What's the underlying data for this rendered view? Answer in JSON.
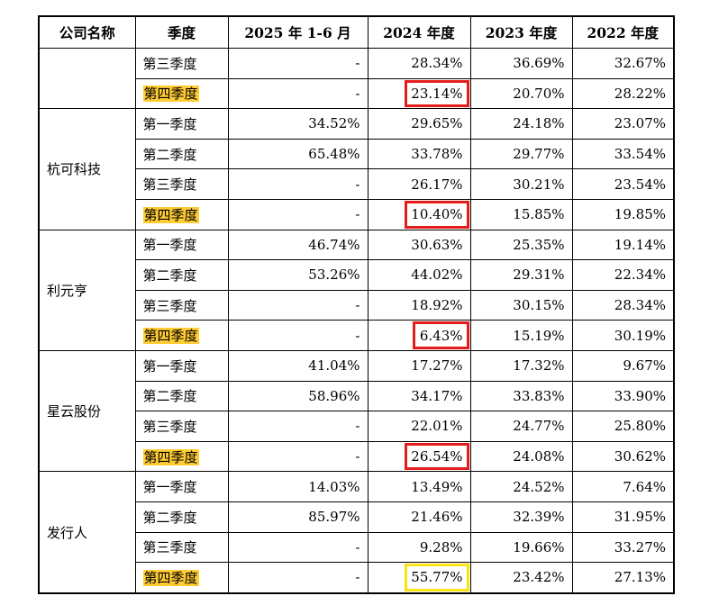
{
  "headers": [
    "公司名称",
    "季度",
    "2025 年 1-6 月",
    "2024 年度",
    "2023 年度",
    "2022 年度"
  ],
  "groups": [
    {
      "company": "",
      "rows": [
        {
          "quarter": "第三季度",
          "v2025": "-",
          "v2024": "28.34%",
          "v2023": "36.69%",
          "v2022": "32.67%",
          "highlight": false,
          "box": null
        },
        {
          "quarter": "第四季度",
          "v2025": "-",
          "v2024": "23.14%",
          "v2023": "20.70%",
          "v2022": "28.22%",
          "highlight": true,
          "box": "red"
        }
      ]
    },
    {
      "company": "杭可科技",
      "rows": [
        {
          "quarter": "第一季度",
          "v2025": "34.52%",
          "v2024": "29.65%",
          "v2023": "24.18%",
          "v2022": "23.07%",
          "highlight": false,
          "box": null
        },
        {
          "quarter": "第二季度",
          "v2025": "65.48%",
          "v2024": "33.78%",
          "v2023": "29.77%",
          "v2022": "33.54%",
          "highlight": false,
          "box": null
        },
        {
          "quarter": "第三季度",
          "v2025": "-",
          "v2024": "26.17%",
          "v2023": "30.21%",
          "v2022": "23.54%",
          "highlight": false,
          "box": null
        },
        {
          "quarter": "第四季度",
          "v2025": "-",
          "v2024": "10.40%",
          "v2023": "15.85%",
          "v2022": "19.85%",
          "highlight": true,
          "box": "red"
        }
      ]
    },
    {
      "company": "利元亨",
      "rows": [
        {
          "quarter": "第一季度",
          "v2025": "46.74%",
          "v2024": "30.63%",
          "v2023": "25.35%",
          "v2022": "19.14%",
          "highlight": false,
          "box": null
        },
        {
          "quarter": "第二季度",
          "v2025": "53.26%",
          "v2024": "44.02%",
          "v2023": "29.31%",
          "v2022": "22.34%",
          "highlight": false,
          "box": null
        },
        {
          "quarter": "第三季度",
          "v2025": "-",
          "v2024": "18.92%",
          "v2023": "30.15%",
          "v2022": "28.34%",
          "highlight": false,
          "box": null
        },
        {
          "quarter": "第四季度",
          "v2025": "-",
          "v2024": "6.43%",
          "v2023": "15.19%",
          "v2022": "30.19%",
          "highlight": true,
          "box": "red"
        }
      ]
    },
    {
      "company": "星云股份",
      "rows": [
        {
          "quarter": "第一季度",
          "v2025": "41.04%",
          "v2024": "17.27%",
          "v2023": "17.32%",
          "v2022": "9.67%",
          "highlight": false,
          "box": null
        },
        {
          "quarter": "第二季度",
          "v2025": "58.96%",
          "v2024": "34.17%",
          "v2023": "33.83%",
          "v2022": "33.90%",
          "highlight": false,
          "box": null
        },
        {
          "quarter": "第三季度",
          "v2025": "-",
          "v2024": "22.01%",
          "v2023": "24.77%",
          "v2022": "25.80%",
          "highlight": false,
          "box": null
        },
        {
          "quarter": "第四季度",
          "v2025": "-",
          "v2024": "26.54%",
          "v2023": "24.08%",
          "v2022": "30.62%",
          "highlight": true,
          "box": "red"
        }
      ]
    },
    {
      "company": "发行人",
      "rows": [
        {
          "quarter": "第一季度",
          "v2025": "14.03%",
          "v2024": "13.49%",
          "v2023": "24.52%",
          "v2022": "7.64%",
          "highlight": false,
          "box": null
        },
        {
          "quarter": "第二季度",
          "v2025": "85.97%",
          "v2024": "21.46%",
          "v2023": "32.39%",
          "v2022": "31.95%",
          "highlight": false,
          "box": null
        },
        {
          "quarter": "第三季度",
          "v2025": "-",
          "v2024": "9.28%",
          "v2023": "19.66%",
          "v2022": "33.27%",
          "highlight": false,
          "box": null
        },
        {
          "quarter": "第四季度",
          "v2025": "-",
          "v2024": "55.77%",
          "v2023": "23.42%",
          "v2022": "27.13%",
          "highlight": true,
          "box": "yellow"
        }
      ]
    }
  ],
  "colors": {
    "highlight": "#ffcc33",
    "box_red": "#e41c1c",
    "box_yellow": "#f7e318"
  }
}
